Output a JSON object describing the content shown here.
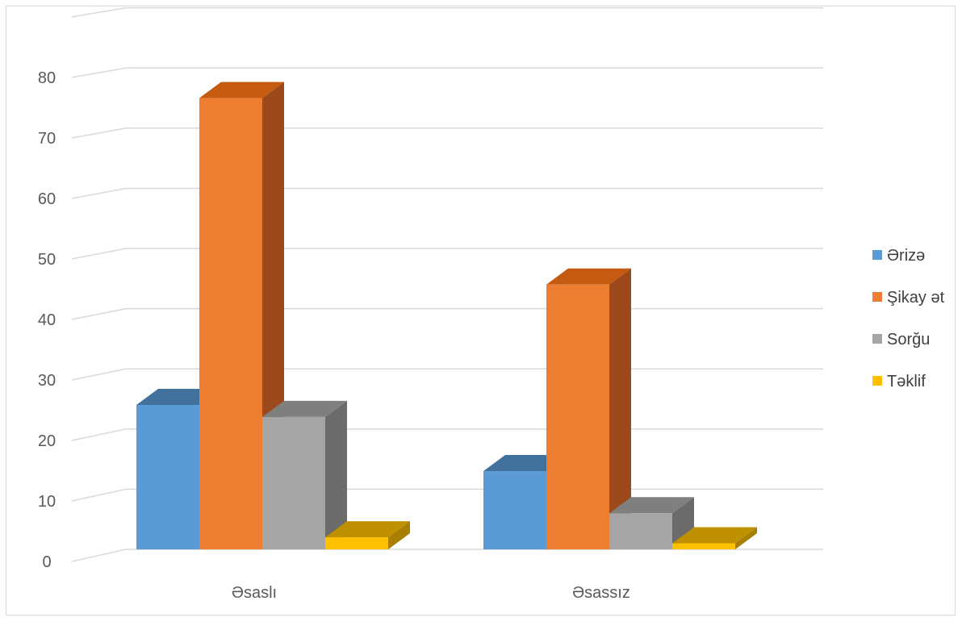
{
  "chart_data": {
    "type": "bar",
    "style": "3d-clustered-column",
    "categories": [
      "Əsaslı",
      "Əsassız"
    ],
    "series": [
      {
        "name": "Ərizə",
        "values": [
          24,
          13
        ],
        "color": "#5b9bd5",
        "top_color": "#41719c",
        "side_color": "#41719c"
      },
      {
        "name": "Şikay ət",
        "values": [
          75,
          44
        ],
        "color": "#ed7d31",
        "top_color": "#c55a11",
        "side_color": "#9c4a1c"
      },
      {
        "name": "Sorğu",
        "values": [
          22,
          6
        ],
        "color": "#a5a5a5",
        "top_color": "#7f7f7f",
        "side_color": "#6b6b6b"
      },
      {
        "name": "Təklif",
        "values": [
          2,
          1
        ],
        "color": "#ffc000",
        "top_color": "#bf9000",
        "side_color": "#a87f00"
      }
    ],
    "yticks": [
      "0",
      "10",
      "20",
      "30",
      "40",
      "50",
      "60",
      "70",
      "80"
    ],
    "ylim": [
      0,
      80
    ],
    "grid": true,
    "legend_position": "right"
  }
}
